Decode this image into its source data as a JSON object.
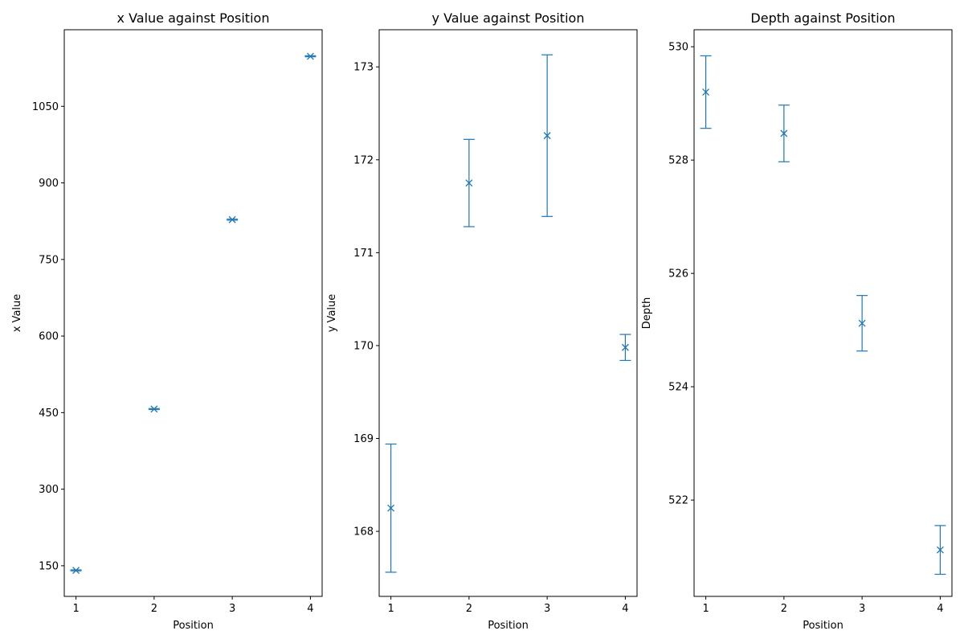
{
  "chart_data": [
    {
      "type": "scatter",
      "title": "x Value against Position",
      "xlabel": "Position",
      "ylabel": "x Value",
      "xlim": [
        0.85,
        4.15
      ],
      "ylim": [
        90,
        1200
      ],
      "xticks": [
        1,
        2,
        3,
        4
      ],
      "yticks": [
        150,
        300,
        450,
        600,
        750,
        900,
        1050
      ],
      "error_bars": "vertical with caps",
      "marker": "x",
      "color": "#1f77b4",
      "grid": false,
      "x": [
        1,
        2,
        3,
        4
      ],
      "y": [
        141,
        457,
        828,
        1148
      ],
      "yerr": [
        1,
        1,
        1,
        1
      ]
    },
    {
      "type": "scatter",
      "title": "y Value against Position",
      "xlabel": "Position",
      "ylabel": "y Value",
      "xlim": [
        0.85,
        4.15
      ],
      "ylim": [
        167.3,
        173.4
      ],
      "xticks": [
        1,
        2,
        3,
        4
      ],
      "yticks": [
        168,
        169,
        170,
        171,
        172,
        173
      ],
      "error_bars": "vertical with caps",
      "marker": "x",
      "color": "#1f77b4",
      "grid": false,
      "x": [
        1,
        2,
        3,
        4
      ],
      "y": [
        168.25,
        171.75,
        172.26,
        169.98
      ],
      "yerr": [
        0.69,
        0.47,
        0.87,
        0.14
      ]
    },
    {
      "type": "scatter",
      "title": "Depth against Position",
      "xlabel": "Position",
      "ylabel": "Depth",
      "xlim": [
        0.85,
        4.15
      ],
      "ylim": [
        520.3,
        530.3
      ],
      "xticks": [
        1,
        2,
        3,
        4
      ],
      "yticks": [
        522,
        524,
        526,
        528,
        530
      ],
      "error_bars": "vertical with caps",
      "marker": "x",
      "color": "#1f77b4",
      "grid": false,
      "x": [
        1,
        2,
        3,
        4
      ],
      "y": [
        529.2,
        528.47,
        525.12,
        521.12
      ],
      "yerr": [
        0.64,
        0.5,
        0.49,
        0.43
      ]
    }
  ]
}
